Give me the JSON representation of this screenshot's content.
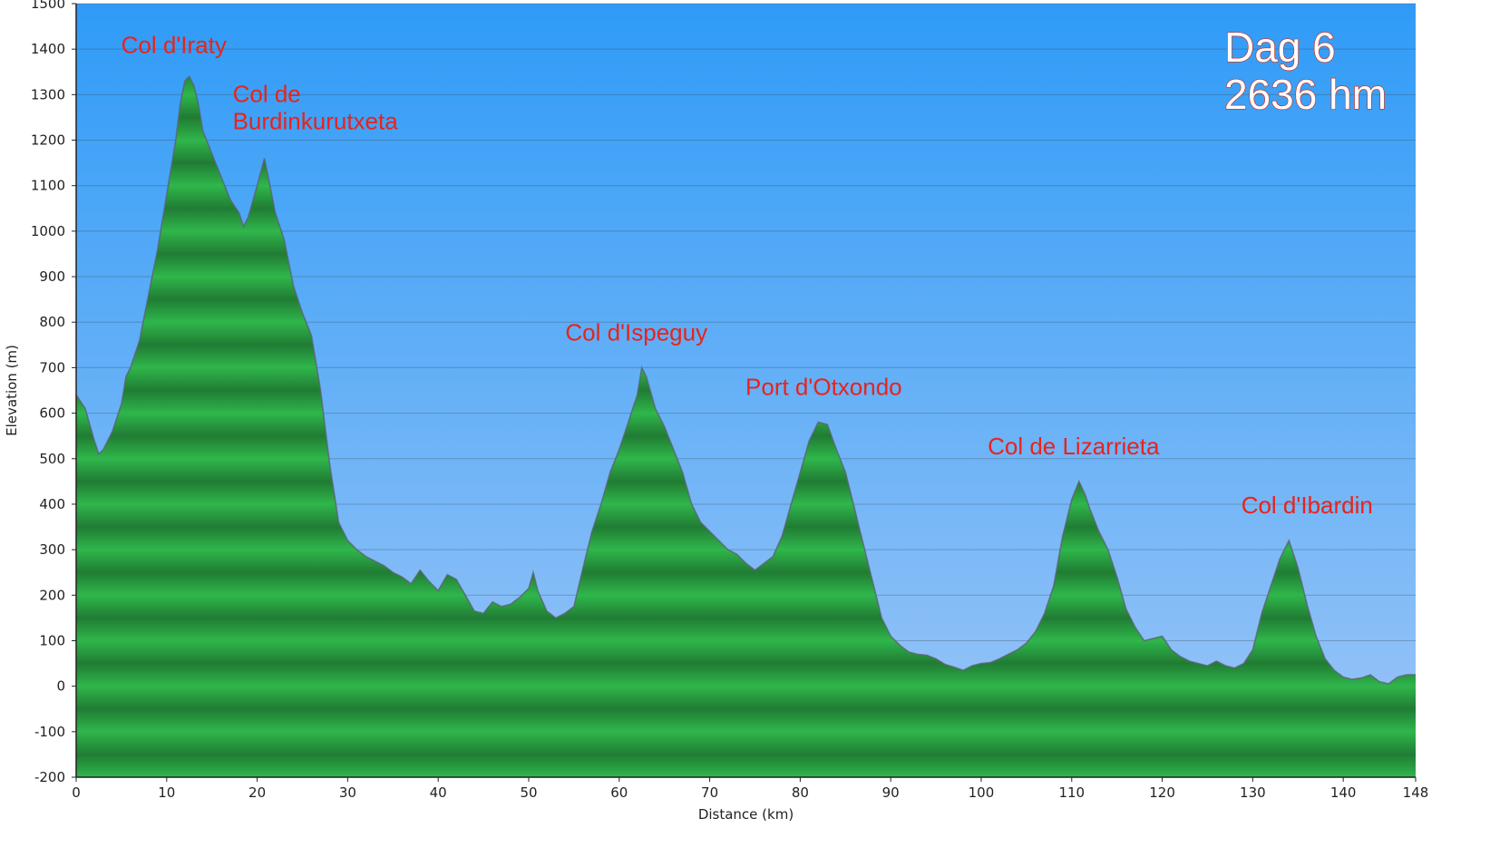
{
  "chart_data": {
    "type": "area",
    "title": "",
    "xlabel": "Distance (km)",
    "ylabel": "Elevation (m)",
    "xlim": [
      0,
      148
    ],
    "ylim": [
      -200,
      1500
    ],
    "x_ticks": [
      0,
      10,
      20,
      30,
      40,
      50,
      60,
      70,
      80,
      90,
      100,
      110,
      120,
      130,
      140,
      148
    ],
    "y_ticks": [
      -200,
      -100,
      0,
      100,
      200,
      300,
      400,
      500,
      600,
      700,
      800,
      900,
      1000,
      1100,
      1200,
      1300,
      1400,
      1500
    ],
    "grid": true,
    "series": [
      {
        "points": [
          [
            0,
            640
          ],
          [
            1,
            610
          ],
          [
            2,
            540
          ],
          [
            2.5,
            510
          ],
          [
            3,
            520
          ],
          [
            4,
            560
          ],
          [
            5,
            620
          ],
          [
            5.5,
            680
          ],
          [
            6,
            700
          ],
          [
            7,
            760
          ],
          [
            7.5,
            810
          ],
          [
            8,
            860
          ],
          [
            9,
            960
          ],
          [
            9.5,
            1020
          ],
          [
            10,
            1080
          ],
          [
            11,
            1200
          ],
          [
            11.5,
            1280
          ],
          [
            12,
            1330
          ],
          [
            12.5,
            1340
          ],
          [
            13,
            1320
          ],
          [
            13.5,
            1280
          ],
          [
            14,
            1220
          ],
          [
            15,
            1170
          ],
          [
            16,
            1120
          ],
          [
            17,
            1070
          ],
          [
            18,
            1040
          ],
          [
            18.5,
            1010
          ],
          [
            19,
            1030
          ],
          [
            20,
            1100
          ],
          [
            20.8,
            1160
          ],
          [
            21.5,
            1090
          ],
          [
            22,
            1040
          ],
          [
            23,
            980
          ],
          [
            24,
            880
          ],
          [
            25,
            820
          ],
          [
            26,
            770
          ],
          [
            27,
            650
          ],
          [
            28,
            490
          ],
          [
            29,
            360
          ],
          [
            30,
            320
          ],
          [
            31,
            300
          ],
          [
            32,
            285
          ],
          [
            33,
            275
          ],
          [
            34,
            265
          ],
          [
            35,
            250
          ],
          [
            36,
            240
          ],
          [
            37,
            225
          ],
          [
            38,
            255
          ],
          [
            39,
            230
          ],
          [
            40,
            210
          ],
          [
            41,
            245
          ],
          [
            42,
            235
          ],
          [
            43,
            200
          ],
          [
            44,
            165
          ],
          [
            45,
            160
          ],
          [
            46,
            185
          ],
          [
            47,
            175
          ],
          [
            48,
            180
          ],
          [
            49,
            195
          ],
          [
            50,
            215
          ],
          [
            50.5,
            250
          ],
          [
            51,
            210
          ],
          [
            52,
            165
          ],
          [
            53,
            150
          ],
          [
            54,
            160
          ],
          [
            55,
            175
          ],
          [
            56,
            260
          ],
          [
            57,
            340
          ],
          [
            58,
            400
          ],
          [
            59,
            470
          ],
          [
            60,
            520
          ],
          [
            61,
            580
          ],
          [
            62,
            640
          ],
          [
            62.5,
            700
          ],
          [
            63,
            680
          ],
          [
            64,
            610
          ],
          [
            65,
            570
          ],
          [
            66,
            520
          ],
          [
            67,
            470
          ],
          [
            68,
            400
          ],
          [
            69,
            360
          ],
          [
            70,
            340
          ],
          [
            71,
            320
          ],
          [
            72,
            300
          ],
          [
            73,
            290
          ],
          [
            74,
            270
          ],
          [
            75,
            255
          ],
          [
            76,
            270
          ],
          [
            77,
            285
          ],
          [
            78,
            330
          ],
          [
            79,
            400
          ],
          [
            80,
            470
          ],
          [
            81,
            540
          ],
          [
            82,
            580
          ],
          [
            83,
            575
          ],
          [
            84,
            520
          ],
          [
            85,
            470
          ],
          [
            86,
            390
          ],
          [
            87,
            310
          ],
          [
            88,
            230
          ],
          [
            89,
            150
          ],
          [
            90,
            110
          ],
          [
            91,
            90
          ],
          [
            92,
            75
          ],
          [
            93,
            70
          ],
          [
            94,
            68
          ],
          [
            95,
            60
          ],
          [
            96,
            48
          ],
          [
            97,
            42
          ],
          [
            98,
            35
          ],
          [
            99,
            45
          ],
          [
            100,
            50
          ],
          [
            101,
            52
          ],
          [
            102,
            60
          ],
          [
            103,
            70
          ],
          [
            104,
            80
          ],
          [
            105,
            95
          ],
          [
            106,
            120
          ],
          [
            107,
            160
          ],
          [
            108,
            220
          ],
          [
            109,
            330
          ],
          [
            110,
            410
          ],
          [
            110.8,
            450
          ],
          [
            111.5,
            420
          ],
          [
            112,
            390
          ],
          [
            113,
            340
          ],
          [
            114,
            300
          ],
          [
            115,
            240
          ],
          [
            116,
            170
          ],
          [
            117,
            130
          ],
          [
            118,
            100
          ],
          [
            119,
            105
          ],
          [
            120,
            110
          ],
          [
            121,
            80
          ],
          [
            122,
            65
          ],
          [
            123,
            55
          ],
          [
            124,
            50
          ],
          [
            125,
            45
          ],
          [
            126,
            55
          ],
          [
            127,
            45
          ],
          [
            128,
            40
          ],
          [
            129,
            50
          ],
          [
            130,
            80
          ],
          [
            131,
            160
          ],
          [
            132,
            220
          ],
          [
            133,
            280
          ],
          [
            134,
            320
          ],
          [
            135,
            260
          ],
          [
            136,
            180
          ],
          [
            137,
            110
          ],
          [
            138,
            60
          ],
          [
            139,
            35
          ],
          [
            140,
            20
          ],
          [
            141,
            15
          ],
          [
            142,
            18
          ],
          [
            143,
            25
          ],
          [
            144,
            10
          ],
          [
            145,
            5
          ],
          [
            146,
            20
          ],
          [
            147,
            25
          ],
          [
            148,
            25
          ]
        ]
      }
    ],
    "annotations": [
      {
        "text": "Col d'Iraty",
        "x": 12.2,
        "y": 1340
      },
      {
        "text": "Col de",
        "text2": "Burdinkurutxeta",
        "x": 20.8,
        "y": 1160
      },
      {
        "text": "Col d'Ispeguy",
        "x": 62.5,
        "y": 700
      },
      {
        "text": "Port d'Otxondo",
        "x": 82,
        "y": 580
      },
      {
        "text": "Col de Lizarrieta",
        "x": 110.8,
        "y": 450
      },
      {
        "text": "Col d'Ibardin",
        "x": 134,
        "y": 320
      }
    ],
    "corner_text": [
      "Dag 6",
      "2636 hm"
    ],
    "colors": {
      "sky_top": "#2f9bf7",
      "sky_bottom": "#9dc6f7",
      "fill_light": "#2fb64b",
      "fill_dark": "#147a33",
      "outline": "#5a6470",
      "peak_label": "#e8231c",
      "gridline": "#3b4a5a"
    }
  }
}
